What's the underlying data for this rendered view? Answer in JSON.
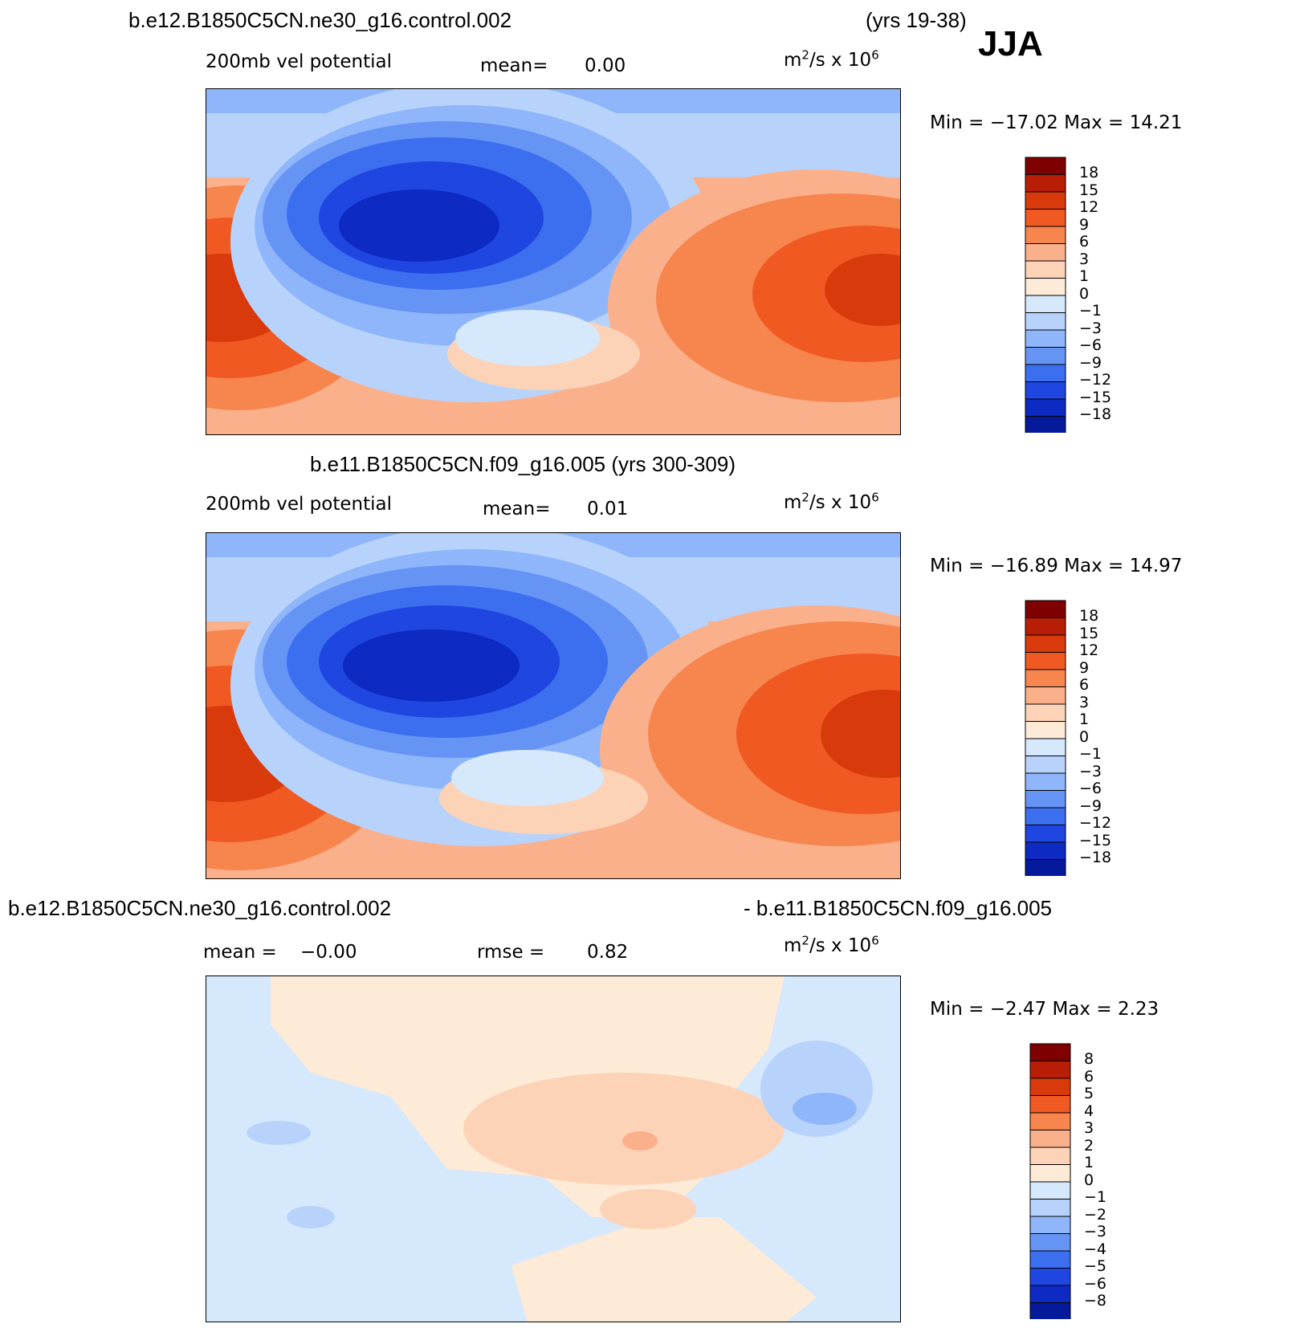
{
  "header": {
    "season": "JJA",
    "years_label": "(yrs 19-38)"
  },
  "panels": [
    {
      "title": "b.e12.B1850C5CN.ne30_g16.control.002",
      "left_label": "200mb vel potential",
      "stat_label": "mean=",
      "stat_value": "0.00",
      "units_base": "m",
      "units_exp": "2",
      "units_mid": "/s x 10",
      "units_exp2": "6",
      "minmax_label": "Min = −17.02 Max =  14.21",
      "colorbar_labels": [
        "18",
        "15",
        "12",
        "9",
        "6",
        "3",
        "1",
        "0",
        "−1",
        "−3",
        "−6",
        "−9",
        "−12",
        "−15",
        "−18"
      ]
    },
    {
      "title": "b.e11.B1850C5CN.f09_g16.005 (yrs 300-309)",
      "left_label": "200mb vel potential",
      "stat_label": "mean=",
      "stat_value": "0.01",
      "units_base": "m",
      "units_exp": "2",
      "units_mid": "/s x 10",
      "units_exp2": "6",
      "minmax_label": "Min = −16.89 Max =  14.97",
      "colorbar_labels": [
        "18",
        "15",
        "12",
        "9",
        "6",
        "3",
        "1",
        "0",
        "−1",
        "−3",
        "−6",
        "−9",
        "−12",
        "−15",
        "−18"
      ]
    },
    {
      "title_left": "b.e12.B1850C5CN.ne30_g16.control.002",
      "title_right": "- b.e11.B1850C5CN.f09_g16.005",
      "left_label": "mean =",
      "left_value": "−0.00",
      "stat_label": "rmse =",
      "stat_value": "0.82",
      "units_base": "m",
      "units_exp": "2",
      "units_mid": "/s x 10",
      "units_exp2": "6",
      "minmax_label": "Min =   −2.47 Max =    2.23",
      "colorbar_labels": [
        "8",
        "6",
        "5",
        "4",
        "3",
        "2",
        "1",
        "0",
        "−1",
        "−2",
        "−3",
        "−4",
        "−5",
        "−6",
        "−8"
      ]
    }
  ],
  "colors": {
    "scale": [
      "#7f0000",
      "#b81d05",
      "#d93a0c",
      "#f05a22",
      "#f7854e",
      "#fbb08c",
      "#fdd3b8",
      "#fdebd8",
      "#d6e8fb",
      "#b8d3fb",
      "#8fb6fa",
      "#6694f5",
      "#3c6ef0",
      "#1f46e0",
      "#0d2ac2",
      "#051a9a"
    ],
    "coast": "#000000"
  }
}
